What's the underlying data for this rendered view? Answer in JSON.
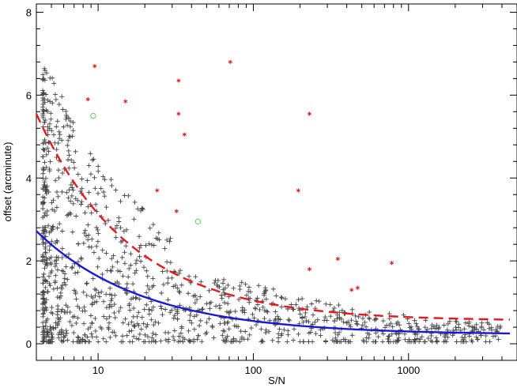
{
  "chart_data": {
    "type": "scatter",
    "xlabel": "S/N",
    "ylabel": "offset (arcminute)",
    "x_scale": "log",
    "xlim": [
      4,
      5000
    ],
    "ylim": [
      -0.4,
      8.2
    ],
    "x_ticks": [
      {
        "value": 10,
        "label": "10"
      },
      {
        "value": 100,
        "label": "100"
      },
      {
        "value": 1000,
        "label": "1000"
      }
    ],
    "y_ticks": [
      {
        "value": 0,
        "label": "0"
      },
      {
        "value": 2,
        "label": "2"
      },
      {
        "value": 4,
        "label": "4"
      },
      {
        "value": 6,
        "label": "6"
      },
      {
        "value": 8,
        "label": "8"
      }
    ],
    "colors": {
      "plus_markers": "#444444",
      "asterisk_markers": "#e41a1c",
      "circle_markers": "#5ad45a",
      "solid_curve": "#1a1ad6",
      "dashed_curve": "#e41a1c"
    },
    "series": [
      {
        "marker": "asterisk",
        "points": [
          [
            9.5,
            6.7
          ],
          [
            8.6,
            5.9
          ],
          [
            15,
            5.85
          ],
          [
            33,
            6.35
          ],
          [
            33,
            5.55
          ],
          [
            36,
            5.05
          ],
          [
            71,
            6.8
          ],
          [
            230,
            5.55
          ],
          [
            24,
            3.7
          ],
          [
            32,
            3.2
          ],
          [
            195,
            3.7
          ],
          [
            350,
            2.05
          ],
          [
            230,
            1.8
          ],
          [
            780,
            1.95
          ],
          [
            470,
            1.35
          ],
          [
            430,
            1.3
          ]
        ]
      },
      {
        "marker": "circle",
        "points": [
          [
            9.3,
            5.5
          ],
          [
            44,
            2.95
          ]
        ]
      },
      {
        "marker": "solid-line",
        "function": "y = 0.22 + 2.5 * (4/x)^0.63",
        "x_range": [
          4,
          4500
        ]
      },
      {
        "marker": "dashed-line",
        "function": "y = 0.55 + 5.0 * (4/x)^0.72",
        "x_range": [
          4,
          4500
        ]
      }
    ]
  }
}
